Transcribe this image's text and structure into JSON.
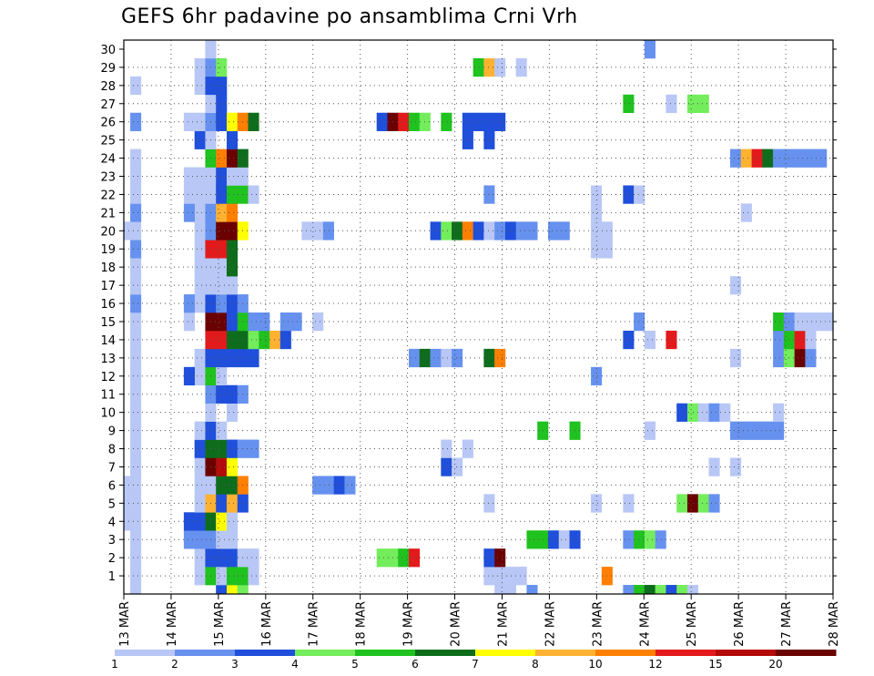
{
  "chart_data": {
    "type": "heatmap",
    "title": "GEFS 6hr padavine po ansamblima Crni Vrh",
    "x_ticks": [
      "13 MAR",
      "14 MAR",
      "15 MAR",
      "16 MAR",
      "17 MAR",
      "18 MAR",
      "19 MAR",
      "20 MAR",
      "21 MAR",
      "22 MAR",
      "23 MAR",
      "24 MAR",
      "25 MAR",
      "26 MAR",
      "27 MAR",
      "28 MAR"
    ],
    "xlim": [
      0,
      60
    ],
    "ylim": [
      0,
      30
    ],
    "y_ticks": [
      1,
      2,
      3,
      4,
      5,
      6,
      7,
      8,
      9,
      10,
      11,
      12,
      13,
      14,
      15,
      16,
      17,
      18,
      19,
      20,
      21,
      22,
      23,
      24,
      25,
      26,
      27,
      28,
      29,
      30
    ],
    "grid": true,
    "colorbar": {
      "orientation": "horizontal",
      "placement": "bottom",
      "colors": [
        "#b8c7f5",
        "#6691ef",
        "#1f4fdb",
        "#73ed5c",
        "#1fc21f",
        "#0e6d1c",
        "#ffff00",
        "#ffb232",
        "#ff7f00",
        "#e31a1c",
        "#b40a0a",
        "#6a0000"
      ],
      "tick_labels": [
        "1",
        "2",
        "3",
        "4",
        "5",
        "6",
        "7",
        "8",
        "10",
        "12",
        "15",
        "20"
      ]
    },
    "cells": [
      [
        1,
        0,
        1
      ],
      [
        1,
        1,
        1
      ],
      [
        1,
        2,
        1
      ],
      [
        1,
        3,
        1
      ],
      [
        1,
        4,
        1
      ],
      [
        1,
        5,
        1
      ],
      [
        1,
        6,
        1
      ],
      [
        1,
        7,
        1
      ],
      [
        1,
        8,
        1
      ],
      [
        1,
        9,
        1
      ],
      [
        1,
        10,
        1
      ],
      [
        1,
        11,
        1
      ],
      [
        1,
        12,
        1
      ],
      [
        1,
        13,
        1
      ],
      [
        1,
        14,
        1
      ],
      [
        1,
        15,
        1
      ],
      [
        1,
        16,
        2
      ],
      [
        1,
        17,
        1
      ],
      [
        1,
        18,
        1
      ],
      [
        1,
        19,
        2
      ],
      [
        1,
        20,
        1
      ],
      [
        1,
        21,
        2
      ],
      [
        1,
        22,
        1
      ],
      [
        1,
        23,
        1
      ],
      [
        1,
        24,
        1
      ],
      [
        1,
        26,
        2
      ],
      [
        1,
        28,
        1
      ],
      [
        0,
        4,
        1
      ],
      [
        0,
        5,
        1
      ],
      [
        0,
        6,
        1
      ],
      [
        0,
        20,
        1
      ],
      [
        7,
        1,
        1
      ],
      [
        7,
        2,
        1
      ],
      [
        7,
        3,
        2
      ],
      [
        7,
        4,
        3
      ],
      [
        7,
        5,
        1
      ],
      [
        7,
        6,
        1
      ],
      [
        7,
        7,
        1
      ],
      [
        7,
        8,
        3
      ],
      [
        7,
        9,
        1
      ],
      [
        7,
        12,
        1
      ],
      [
        7,
        13,
        1
      ],
      [
        7,
        16,
        1
      ],
      [
        7,
        17,
        1
      ],
      [
        7,
        18,
        1
      ],
      [
        7,
        19,
        1
      ],
      [
        7,
        20,
        1
      ],
      [
        7,
        21,
        1
      ],
      [
        7,
        22,
        1
      ],
      [
        7,
        23,
        1
      ],
      [
        7,
        25,
        3
      ],
      [
        7,
        26,
        1
      ],
      [
        7,
        28,
        1
      ],
      [
        7,
        29,
        1
      ],
      [
        6,
        3,
        2
      ],
      [
        6,
        4,
        3
      ],
      [
        6,
        12,
        3
      ],
      [
        6,
        15,
        1
      ],
      [
        6,
        16,
        2
      ],
      [
        6,
        21,
        2
      ],
      [
        6,
        22,
        1
      ],
      [
        6,
        23,
        1
      ],
      [
        6,
        26,
        1
      ],
      [
        8,
        1,
        5
      ],
      [
        8,
        2,
        3
      ],
      [
        8,
        3,
        2
      ],
      [
        8,
        4,
        6
      ],
      [
        8,
        5,
        8
      ],
      [
        8,
        6,
        1
      ],
      [
        8,
        7,
        12
      ],
      [
        8,
        8,
        6
      ],
      [
        8,
        9,
        3
      ],
      [
        8,
        10,
        1
      ],
      [
        8,
        11,
        2
      ],
      [
        8,
        12,
        5
      ],
      [
        8,
        13,
        3
      ],
      [
        8,
        14,
        10
      ],
      [
        8,
        15,
        12
      ],
      [
        8,
        16,
        3
      ],
      [
        8,
        17,
        1
      ],
      [
        8,
        18,
        1
      ],
      [
        8,
        19,
        10
      ],
      [
        8,
        20,
        2
      ],
      [
        8,
        21,
        2
      ],
      [
        8,
        22,
        1
      ],
      [
        8,
        23,
        1
      ],
      [
        8,
        24,
        5
      ],
      [
        8,
        25,
        1
      ],
      [
        8,
        26,
        2
      ],
      [
        8,
        27,
        1
      ],
      [
        8,
        28,
        3
      ],
      [
        8,
        29,
        2
      ],
      [
        8,
        30,
        1
      ],
      [
        9,
        0,
        3
      ],
      [
        9,
        1,
        1
      ],
      [
        9,
        2,
        3
      ],
      [
        9,
        3,
        1
      ],
      [
        9,
        4,
        7
      ],
      [
        9,
        5,
        3
      ],
      [
        9,
        6,
        6
      ],
      [
        9,
        7,
        11
      ],
      [
        9,
        8,
        6
      ],
      [
        9,
        9,
        1
      ],
      [
        9,
        11,
        3
      ],
      [
        9,
        12,
        1
      ],
      [
        9,
        13,
        3
      ],
      [
        9,
        14,
        10
      ],
      [
        9,
        15,
        12
      ],
      [
        9,
        16,
        2
      ],
      [
        9,
        17,
        1
      ],
      [
        9,
        18,
        1
      ],
      [
        9,
        19,
        10
      ],
      [
        9,
        20,
        12
      ],
      [
        9,
        21,
        8
      ],
      [
        9,
        22,
        3
      ],
      [
        9,
        23,
        3
      ],
      [
        9,
        24,
        9
      ],
      [
        9,
        26,
        3
      ],
      [
        9,
        27,
        3
      ],
      [
        9,
        28,
        3
      ],
      [
        9,
        29,
        4
      ],
      [
        10,
        0,
        7
      ],
      [
        10,
        1,
        5
      ],
      [
        10,
        2,
        3
      ],
      [
        10,
        3,
        1
      ],
      [
        10,
        4,
        1
      ],
      [
        10,
        5,
        8
      ],
      [
        10,
        6,
        6
      ],
      [
        10,
        7,
        7
      ],
      [
        10,
        8,
        3
      ],
      [
        10,
        10,
        1
      ],
      [
        10,
        11,
        3
      ],
      [
        10,
        13,
        3
      ],
      [
        10,
        14,
        6
      ],
      [
        10,
        15,
        3
      ],
      [
        10,
        16,
        3
      ],
      [
        10,
        17,
        1
      ],
      [
        10,
        18,
        6
      ],
      [
        10,
        19,
        6
      ],
      [
        10,
        20,
        12
      ],
      [
        10,
        21,
        9
      ],
      [
        10,
        22,
        5
      ],
      [
        10,
        23,
        1
      ],
      [
        10,
        24,
        12
      ],
      [
        10,
        25,
        3
      ],
      [
        10,
        26,
        7
      ],
      [
        11,
        0,
        4
      ],
      [
        11,
        1,
        5
      ],
      [
        11,
        2,
        1
      ],
      [
        11,
        5,
        3
      ],
      [
        11,
        6,
        9
      ],
      [
        11,
        8,
        2
      ],
      [
        11,
        11,
        2
      ],
      [
        11,
        13,
        3
      ],
      [
        11,
        14,
        6
      ],
      [
        11,
        15,
        5
      ],
      [
        11,
        16,
        2
      ],
      [
        11,
        20,
        7
      ],
      [
        11,
        22,
        5
      ],
      [
        11,
        23,
        1
      ],
      [
        11,
        24,
        6
      ],
      [
        11,
        26,
        9
      ],
      [
        12,
        1,
        1
      ],
      [
        12,
        2,
        1
      ],
      [
        12,
        8,
        2
      ],
      [
        12,
        13,
        3
      ],
      [
        12,
        14,
        4
      ],
      [
        12,
        15,
        2
      ],
      [
        12,
        22,
        1
      ],
      [
        12,
        26,
        6
      ],
      [
        13,
        14,
        5
      ],
      [
        13,
        15,
        2
      ],
      [
        14,
        14,
        8
      ],
      [
        15,
        14,
        3
      ],
      [
        15,
        15,
        2
      ],
      [
        16,
        15,
        2
      ],
      [
        17,
        20,
        1
      ],
      [
        18,
        6,
        2
      ],
      [
        18,
        15,
        1
      ],
      [
        18,
        20,
        1
      ],
      [
        19,
        6,
        2
      ],
      [
        19,
        20,
        2
      ],
      [
        20,
        6,
        3
      ],
      [
        21,
        6,
        2
      ],
      [
        24,
        2,
        4
      ],
      [
        24,
        26,
        3
      ],
      [
        25,
        2,
        4
      ],
      [
        25,
        26,
        12
      ],
      [
        26,
        2,
        5
      ],
      [
        26,
        26,
        10
      ],
      [
        27,
        2,
        10
      ],
      [
        27,
        13,
        2
      ],
      [
        27,
        26,
        5
      ],
      [
        28,
        13,
        6
      ],
      [
        28,
        26,
        4
      ],
      [
        29,
        13,
        2
      ],
      [
        29,
        20,
        3
      ],
      [
        30,
        7,
        3
      ],
      [
        30,
        8,
        1
      ],
      [
        30,
        13,
        1
      ],
      [
        30,
        20,
        4
      ],
      [
        30,
        26,
        5
      ],
      [
        31,
        7,
        1
      ],
      [
        31,
        13,
        2
      ],
      [
        31,
        20,
        6
      ],
      [
        32,
        8,
        1
      ],
      [
        32,
        20,
        9
      ],
      [
        32,
        25,
        3
      ],
      [
        32,
        26,
        3
      ],
      [
        33,
        20,
        3
      ],
      [
        33,
        26,
        3
      ],
      [
        33,
        29,
        5
      ],
      [
        34,
        1,
        1
      ],
      [
        34,
        2,
        3
      ],
      [
        34,
        5,
        1
      ],
      [
        34,
        13,
        6
      ],
      [
        34,
        20,
        1
      ],
      [
        34,
        22,
        2
      ],
      [
        34,
        25,
        3
      ],
      [
        34,
        26,
        3
      ],
      [
        34,
        29,
        8
      ],
      [
        35,
        0,
        1
      ],
      [
        35,
        1,
        1
      ],
      [
        35,
        2,
        12
      ],
      [
        35,
        13,
        9
      ],
      [
        35,
        20,
        2
      ],
      [
        35,
        26,
        3
      ],
      [
        35,
        29,
        1
      ],
      [
        36,
        0,
        1
      ],
      [
        36,
        1,
        1
      ],
      [
        36,
        20,
        3
      ],
      [
        37,
        1,
        1
      ],
      [
        37,
        20,
        2
      ],
      [
        37,
        29,
        1
      ],
      [
        38,
        0,
        2
      ],
      [
        38,
        3,
        5
      ],
      [
        38,
        20,
        2
      ],
      [
        39,
        3,
        5
      ],
      [
        39,
        9,
        5
      ],
      [
        40,
        3,
        3
      ],
      [
        40,
        20,
        2
      ],
      [
        41,
        3,
        1
      ],
      [
        41,
        20,
        2
      ],
      [
        42,
        3,
        3
      ],
      [
        42,
        9,
        5
      ],
      [
        44,
        5,
        1
      ],
      [
        44,
        12,
        2
      ],
      [
        44,
        19,
        1
      ],
      [
        44,
        20,
        1
      ],
      [
        44,
        21,
        1
      ],
      [
        44,
        22,
        1
      ],
      [
        45,
        1,
        9
      ],
      [
        45,
        19,
        1
      ],
      [
        45,
        20,
        1
      ],
      [
        47,
        0,
        2
      ],
      [
        47,
        3,
        2
      ],
      [
        47,
        5,
        1
      ],
      [
        47,
        14,
        3
      ],
      [
        47,
        22,
        3
      ],
      [
        47,
        27,
        5
      ],
      [
        48,
        0,
        5
      ],
      [
        48,
        3,
        5
      ],
      [
        48,
        15,
        2
      ],
      [
        48,
        22,
        1
      ],
      [
        49,
        0,
        6
      ],
      [
        49,
        3,
        4
      ],
      [
        49,
        9,
        1
      ],
      [
        49,
        14,
        1
      ],
      [
        49,
        30,
        2
      ],
      [
        50,
        0,
        4
      ],
      [
        50,
        3,
        2
      ],
      [
        51,
        0,
        3
      ],
      [
        51,
        14,
        10
      ],
      [
        51,
        27,
        1
      ],
      [
        52,
        0,
        4
      ],
      [
        52,
        5,
        4
      ],
      [
        52,
        10,
        3
      ],
      [
        53,
        0,
        1
      ],
      [
        53,
        5,
        12
      ],
      [
        53,
        10,
        4
      ],
      [
        53,
        27,
        4
      ],
      [
        54,
        5,
        4
      ],
      [
        54,
        10,
        1
      ],
      [
        54,
        27,
        4
      ],
      [
        55,
        5,
        2
      ],
      [
        55,
        7,
        1
      ],
      [
        55,
        10,
        2
      ],
      [
        56,
        10,
        1
      ],
      [
        57,
        7,
        1
      ],
      [
        57,
        9,
        2
      ],
      [
        57,
        13,
        1
      ],
      [
        57,
        17,
        1
      ],
      [
        57,
        24,
        2
      ],
      [
        58,
        9,
        2
      ],
      [
        58,
        21,
        1
      ],
      [
        58,
        24,
        8
      ],
      [
        59,
        9,
        2
      ],
      [
        59,
        24,
        10
      ],
      [
        60,
        9,
        2
      ],
      [
        60,
        24,
        6
      ],
      [
        61,
        9,
        2
      ],
      [
        61,
        10,
        1
      ],
      [
        61,
        13,
        2
      ],
      [
        61,
        14,
        2
      ],
      [
        61,
        15,
        5
      ],
      [
        61,
        24,
        2
      ],
      [
        62,
        13,
        4
      ],
      [
        62,
        14,
        5
      ],
      [
        62,
        15,
        2
      ],
      [
        62,
        24,
        2
      ],
      [
        63,
        13,
        12
      ],
      [
        63,
        14,
        10
      ],
      [
        63,
        15,
        1
      ],
      [
        63,
        24,
        2
      ],
      [
        64,
        13,
        2
      ],
      [
        64,
        14,
        1
      ],
      [
        64,
        15,
        1
      ],
      [
        64,
        24,
        2
      ],
      [
        65,
        15,
        1
      ],
      [
        65,
        24,
        2
      ],
      [
        66,
        15,
        1
      ]
    ]
  }
}
